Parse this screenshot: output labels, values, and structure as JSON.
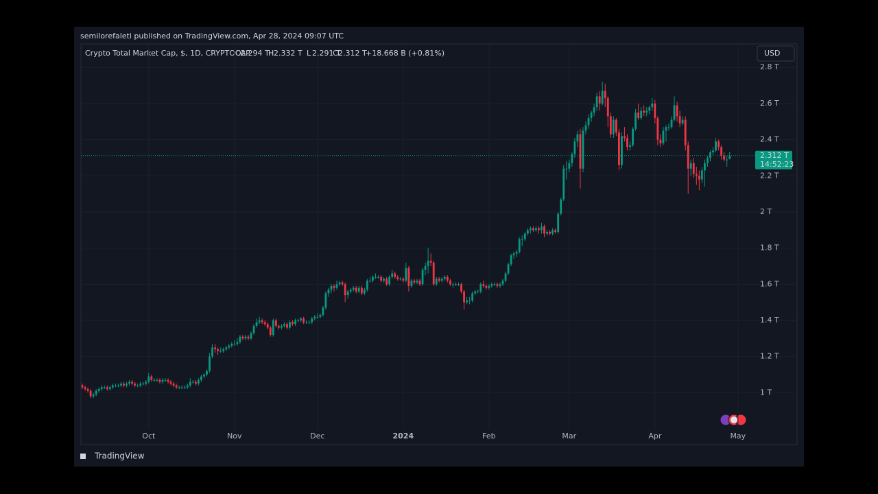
{
  "header": {
    "publisher_line": "semilorefaleti published on TradingView.com, Apr 28, 2024 09:07 UTC",
    "currency": "USD",
    "footer_logo": "TradingView"
  },
  "chart_data": {
    "type": "candlestick",
    "title": "Crypto Total Market Cap, $, 1D, CRYPTOCAP",
    "legend": [
      {
        "key": "O",
        "text": "2.294 T"
      },
      {
        "key": "H",
        "text": "2.332 T"
      },
      {
        "key": "L",
        "text": "2.291 T"
      },
      {
        "key": "C",
        "text": "2.312 T"
      }
    ],
    "change": "+18.668 B (+0.81%)",
    "last_price_label": "2.312 T",
    "countdown": "14:52:23",
    "up_color": "#089981",
    "down_color": "#f23645",
    "grid": true,
    "ylim": [
      0.8,
      2.93
    ],
    "yticks": [
      {
        "value": 1,
        "label": "1 T"
      },
      {
        "value": 1.2,
        "label": "1.2 T"
      },
      {
        "value": 1.4,
        "label": "1.4 T"
      },
      {
        "value": 1.6,
        "label": "1.6 T"
      },
      {
        "value": 1.8,
        "label": "1.8 T"
      },
      {
        "value": 2,
        "label": "2 T"
      },
      {
        "value": 2.2,
        "label": "2.2 T"
      },
      {
        "value": 2.4,
        "label": "2.4 T"
      },
      {
        "value": 2.6,
        "label": "2.6 T"
      },
      {
        "value": 2.8,
        "label": "2.8 T"
      }
    ],
    "xlim": [
      -0.5,
      242.5
    ],
    "xticks": [
      {
        "value": 24,
        "label": "Oct"
      },
      {
        "value": 55,
        "label": "Nov"
      },
      {
        "value": 85,
        "label": "Dec"
      },
      {
        "value": 116,
        "label": "2024"
      },
      {
        "value": 147,
        "label": "Feb"
      },
      {
        "value": 176,
        "label": "Mar"
      },
      {
        "value": 207,
        "label": "Apr"
      },
      {
        "value": 237,
        "label": "May"
      }
    ],
    "candles": [
      [
        1.04,
        1.05,
        1.02,
        1.03
      ],
      [
        1.03,
        1.04,
        1.01,
        1.02
      ],
      [
        1.02,
        1.03,
        1.0,
        1.01
      ],
      [
        1.01,
        1.02,
        0.97,
        0.98
      ],
      [
        0.98,
        1.0,
        0.97,
        0.99
      ],
      [
        0.99,
        1.02,
        0.98,
        1.01
      ],
      [
        1.01,
        1.03,
        1.0,
        1.02
      ],
      [
        1.02,
        1.04,
        1.01,
        1.03
      ],
      [
        1.03,
        1.04,
        1.02,
        1.03
      ],
      [
        1.03,
        1.04,
        1.01,
        1.02
      ],
      [
        1.02,
        1.04,
        1.01,
        1.03
      ],
      [
        1.03,
        1.05,
        1.02,
        1.04
      ],
      [
        1.04,
        1.05,
        1.03,
        1.04
      ],
      [
        1.04,
        1.05,
        1.03,
        1.04
      ],
      [
        1.04,
        1.06,
        1.03,
        1.05
      ],
      [
        1.05,
        1.06,
        1.03,
        1.04
      ],
      [
        1.04,
        1.06,
        1.03,
        1.05
      ],
      [
        1.05,
        1.07,
        1.04,
        1.06
      ],
      [
        1.06,
        1.07,
        1.04,
        1.05
      ],
      [
        1.05,
        1.06,
        1.03,
        1.04
      ],
      [
        1.04,
        1.05,
        1.03,
        1.04
      ],
      [
        1.04,
        1.06,
        1.03,
        1.05
      ],
      [
        1.05,
        1.06,
        1.04,
        1.05
      ],
      [
        1.05,
        1.07,
        1.04,
        1.06
      ],
      [
        1.06,
        1.11,
        1.05,
        1.09
      ],
      [
        1.09,
        1.1,
        1.06,
        1.07
      ],
      [
        1.07,
        1.08,
        1.06,
        1.07
      ],
      [
        1.07,
        1.08,
        1.06,
        1.07
      ],
      [
        1.07,
        1.08,
        1.05,
        1.06
      ],
      [
        1.06,
        1.08,
        1.05,
        1.07
      ],
      [
        1.07,
        1.08,
        1.06,
        1.07
      ],
      [
        1.07,
        1.08,
        1.05,
        1.06
      ],
      [
        1.06,
        1.07,
        1.04,
        1.05
      ],
      [
        1.05,
        1.06,
        1.03,
        1.04
      ],
      [
        1.04,
        1.05,
        1.02,
        1.03
      ],
      [
        1.03,
        1.04,
        1.02,
        1.03
      ],
      [
        1.03,
        1.04,
        1.02,
        1.03
      ],
      [
        1.03,
        1.04,
        1.02,
        1.03
      ],
      [
        1.03,
        1.05,
        1.02,
        1.04
      ],
      [
        1.04,
        1.08,
        1.03,
        1.06
      ],
      [
        1.06,
        1.07,
        1.05,
        1.06
      ],
      [
        1.06,
        1.07,
        1.04,
        1.05
      ],
      [
        1.05,
        1.08,
        1.04,
        1.07
      ],
      [
        1.07,
        1.1,
        1.06,
        1.09
      ],
      [
        1.09,
        1.11,
        1.08,
        1.1
      ],
      [
        1.1,
        1.13,
        1.09,
        1.12
      ],
      [
        1.12,
        1.22,
        1.11,
        1.2
      ],
      [
        1.2,
        1.27,
        1.19,
        1.25
      ],
      [
        1.25,
        1.27,
        1.22,
        1.24
      ],
      [
        1.24,
        1.25,
        1.21,
        1.23
      ],
      [
        1.23,
        1.25,
        1.22,
        1.23
      ],
      [
        1.23,
        1.25,
        1.22,
        1.24
      ],
      [
        1.24,
        1.26,
        1.23,
        1.25
      ],
      [
        1.25,
        1.27,
        1.24,
        1.26
      ],
      [
        1.26,
        1.28,
        1.25,
        1.27
      ],
      [
        1.27,
        1.29,
        1.26,
        1.27
      ],
      [
        1.27,
        1.3,
        1.26,
        1.28
      ],
      [
        1.28,
        1.32,
        1.27,
        1.31
      ],
      [
        1.31,
        1.32,
        1.29,
        1.3
      ],
      [
        1.3,
        1.32,
        1.29,
        1.31
      ],
      [
        1.31,
        1.32,
        1.29,
        1.3
      ],
      [
        1.3,
        1.34,
        1.29,
        1.33
      ],
      [
        1.33,
        1.38,
        1.32,
        1.37
      ],
      [
        1.37,
        1.41,
        1.36,
        1.39
      ],
      [
        1.39,
        1.42,
        1.38,
        1.4
      ],
      [
        1.4,
        1.41,
        1.38,
        1.39
      ],
      [
        1.39,
        1.4,
        1.37,
        1.38
      ],
      [
        1.38,
        1.39,
        1.35,
        1.36
      ],
      [
        1.36,
        1.37,
        1.31,
        1.32
      ],
      [
        1.32,
        1.41,
        1.31,
        1.4
      ],
      [
        1.4,
        1.41,
        1.36,
        1.37
      ],
      [
        1.37,
        1.38,
        1.35,
        1.36
      ],
      [
        1.36,
        1.38,
        1.35,
        1.37
      ],
      [
        1.37,
        1.39,
        1.36,
        1.38
      ],
      [
        1.38,
        1.39,
        1.35,
        1.36
      ],
      [
        1.36,
        1.4,
        1.35,
        1.39
      ],
      [
        1.39,
        1.4,
        1.37,
        1.38
      ],
      [
        1.38,
        1.41,
        1.37,
        1.4
      ],
      [
        1.4,
        1.41,
        1.39,
        1.4
      ],
      [
        1.4,
        1.42,
        1.39,
        1.41
      ],
      [
        1.41,
        1.42,
        1.38,
        1.39
      ],
      [
        1.39,
        1.4,
        1.38,
        1.39
      ],
      [
        1.39,
        1.4,
        1.38,
        1.39
      ],
      [
        1.39,
        1.42,
        1.38,
        1.41
      ],
      [
        1.41,
        1.43,
        1.4,
        1.42
      ],
      [
        1.42,
        1.44,
        1.41,
        1.42
      ],
      [
        1.42,
        1.44,
        1.41,
        1.43
      ],
      [
        1.43,
        1.48,
        1.42,
        1.47
      ],
      [
        1.47,
        1.56,
        1.46,
        1.55
      ],
      [
        1.55,
        1.58,
        1.53,
        1.57
      ],
      [
        1.57,
        1.6,
        1.55,
        1.59
      ],
      [
        1.59,
        1.6,
        1.56,
        1.58
      ],
      [
        1.58,
        1.62,
        1.57,
        1.6
      ],
      [
        1.6,
        1.62,
        1.59,
        1.61
      ],
      [
        1.61,
        1.62,
        1.59,
        1.6
      ],
      [
        1.6,
        1.61,
        1.5,
        1.54
      ],
      [
        1.54,
        1.57,
        1.52,
        1.56
      ],
      [
        1.56,
        1.58,
        1.55,
        1.57
      ],
      [
        1.57,
        1.59,
        1.56,
        1.58
      ],
      [
        1.58,
        1.59,
        1.55,
        1.56
      ],
      [
        1.56,
        1.59,
        1.55,
        1.58
      ],
      [
        1.58,
        1.59,
        1.54,
        1.55
      ],
      [
        1.55,
        1.58,
        1.54,
        1.57
      ],
      [
        1.57,
        1.63,
        1.56,
        1.62
      ],
      [
        1.62,
        1.64,
        1.61,
        1.62
      ],
      [
        1.62,
        1.65,
        1.61,
        1.64
      ],
      [
        1.64,
        1.66,
        1.63,
        1.64
      ],
      [
        1.64,
        1.65,
        1.63,
        1.64
      ],
      [
        1.64,
        1.65,
        1.61,
        1.62
      ],
      [
        1.62,
        1.64,
        1.61,
        1.63
      ],
      [
        1.63,
        1.64,
        1.59,
        1.6
      ],
      [
        1.6,
        1.65,
        1.59,
        1.64
      ],
      [
        1.64,
        1.68,
        1.63,
        1.66
      ],
      [
        1.66,
        1.67,
        1.63,
        1.64
      ],
      [
        1.64,
        1.65,
        1.62,
        1.63
      ],
      [
        1.63,
        1.64,
        1.62,
        1.63
      ],
      [
        1.63,
        1.64,
        1.61,
        1.62
      ],
      [
        1.62,
        1.72,
        1.61,
        1.69
      ],
      [
        1.69,
        1.7,
        1.56,
        1.59
      ],
      [
        1.59,
        1.63,
        1.58,
        1.62
      ],
      [
        1.62,
        1.63,
        1.6,
        1.61
      ],
      [
        1.61,
        1.63,
        1.6,
        1.62
      ],
      [
        1.62,
        1.63,
        1.59,
        1.6
      ],
      [
        1.6,
        1.69,
        1.59,
        1.68
      ],
      [
        1.68,
        1.72,
        1.65,
        1.7
      ],
      [
        1.7,
        1.8,
        1.66,
        1.73
      ],
      [
        1.73,
        1.77,
        1.7,
        1.72
      ],
      [
        1.72,
        1.73,
        1.59,
        1.6
      ],
      [
        1.6,
        1.64,
        1.59,
        1.63
      ],
      [
        1.63,
        1.64,
        1.61,
        1.62
      ],
      [
        1.62,
        1.64,
        1.61,
        1.63
      ],
      [
        1.63,
        1.65,
        1.62,
        1.64
      ],
      [
        1.64,
        1.65,
        1.61,
        1.62
      ],
      [
        1.62,
        1.63,
        1.59,
        1.6
      ],
      [
        1.6,
        1.61,
        1.58,
        1.6
      ],
      [
        1.6,
        1.61,
        1.59,
        1.6
      ],
      [
        1.6,
        1.61,
        1.59,
        1.6
      ],
      [
        1.6,
        1.61,
        1.55,
        1.56
      ],
      [
        1.56,
        1.57,
        1.46,
        1.5
      ],
      [
        1.5,
        1.53,
        1.49,
        1.51
      ],
      [
        1.51,
        1.53,
        1.49,
        1.51
      ],
      [
        1.51,
        1.56,
        1.5,
        1.55
      ],
      [
        1.55,
        1.57,
        1.54,
        1.56
      ],
      [
        1.56,
        1.57,
        1.55,
        1.56
      ],
      [
        1.56,
        1.61,
        1.55,
        1.6
      ],
      [
        1.6,
        1.62,
        1.58,
        1.59
      ],
      [
        1.59,
        1.6,
        1.57,
        1.58
      ],
      [
        1.58,
        1.6,
        1.57,
        1.59
      ],
      [
        1.59,
        1.61,
        1.58,
        1.6
      ],
      [
        1.6,
        1.61,
        1.59,
        1.6
      ],
      [
        1.6,
        1.61,
        1.58,
        1.59
      ],
      [
        1.59,
        1.61,
        1.58,
        1.6
      ],
      [
        1.6,
        1.63,
        1.59,
        1.62
      ],
      [
        1.62,
        1.67,
        1.61,
        1.66
      ],
      [
        1.66,
        1.72,
        1.65,
        1.71
      ],
      [
        1.71,
        1.77,
        1.7,
        1.76
      ],
      [
        1.76,
        1.78,
        1.74,
        1.77
      ],
      [
        1.77,
        1.79,
        1.75,
        1.78
      ],
      [
        1.78,
        1.86,
        1.77,
        1.85
      ],
      [
        1.85,
        1.87,
        1.81,
        1.85
      ],
      [
        1.85,
        1.89,
        1.84,
        1.88
      ],
      [
        1.88,
        1.91,
        1.87,
        1.9
      ],
      [
        1.9,
        1.92,
        1.88,
        1.91
      ],
      [
        1.91,
        1.92,
        1.89,
        1.9
      ],
      [
        1.9,
        1.92,
        1.89,
        1.91
      ],
      [
        1.91,
        1.92,
        1.88,
        1.9
      ],
      [
        1.9,
        1.94,
        1.88,
        1.92
      ],
      [
        1.92,
        1.93,
        1.86,
        1.88
      ],
      [
        1.88,
        1.9,
        1.87,
        1.89
      ],
      [
        1.89,
        1.9,
        1.87,
        1.88
      ],
      [
        1.88,
        1.91,
        1.87,
        1.9
      ],
      [
        1.9,
        1.91,
        1.88,
        1.89
      ],
      [
        1.89,
        2.0,
        1.88,
        1.99
      ],
      [
        1.99,
        2.08,
        1.98,
        2.07
      ],
      [
        2.07,
        2.26,
        2.06,
        2.24
      ],
      [
        2.24,
        2.28,
        2.18,
        2.24
      ],
      [
        2.24,
        2.29,
        2.22,
        2.27
      ],
      [
        2.27,
        2.33,
        2.25,
        2.32
      ],
      [
        2.32,
        2.41,
        2.3,
        2.39
      ],
      [
        2.39,
        2.45,
        2.36,
        2.43
      ],
      [
        2.43,
        2.46,
        2.13,
        2.24
      ],
      [
        2.24,
        2.47,
        2.22,
        2.45
      ],
      [
        2.45,
        2.5,
        2.43,
        2.48
      ],
      [
        2.48,
        2.54,
        2.46,
        2.52
      ],
      [
        2.52,
        2.56,
        2.5,
        2.55
      ],
      [
        2.55,
        2.6,
        2.53,
        2.58
      ],
      [
        2.58,
        2.66,
        2.56,
        2.64
      ],
      [
        2.64,
        2.67,
        2.56,
        2.6
      ],
      [
        2.6,
        2.72,
        2.59,
        2.67
      ],
      [
        2.67,
        2.71,
        2.58,
        2.63
      ],
      [
        2.63,
        2.64,
        2.47,
        2.53
      ],
      [
        2.53,
        2.55,
        2.41,
        2.43
      ],
      [
        2.43,
        2.53,
        2.41,
        2.51
      ],
      [
        2.51,
        2.52,
        2.42,
        2.44
      ],
      [
        2.44,
        2.46,
        2.23,
        2.26
      ],
      [
        2.26,
        2.44,
        2.24,
        2.42
      ],
      [
        2.42,
        2.47,
        2.39,
        2.41
      ],
      [
        2.41,
        2.43,
        2.34,
        2.36
      ],
      [
        2.36,
        2.39,
        2.34,
        2.37
      ],
      [
        2.37,
        2.47,
        2.36,
        2.46
      ],
      [
        2.46,
        2.57,
        2.45,
        2.55
      ],
      [
        2.55,
        2.6,
        2.51,
        2.52
      ],
      [
        2.52,
        2.58,
        2.51,
        2.56
      ],
      [
        2.56,
        2.59,
        2.53,
        2.55
      ],
      [
        2.55,
        2.58,
        2.53,
        2.56
      ],
      [
        2.56,
        2.59,
        2.54,
        2.58
      ],
      [
        2.58,
        2.63,
        2.56,
        2.6
      ],
      [
        2.6,
        2.62,
        2.49,
        2.52
      ],
      [
        2.52,
        2.53,
        2.37,
        2.4
      ],
      [
        2.4,
        2.43,
        2.36,
        2.38
      ],
      [
        2.38,
        2.47,
        2.37,
        2.45
      ],
      [
        2.45,
        2.48,
        2.39,
        2.47
      ],
      [
        2.47,
        2.49,
        2.45,
        2.47
      ],
      [
        2.47,
        2.53,
        2.46,
        2.51
      ],
      [
        2.51,
        2.64,
        2.5,
        2.59
      ],
      [
        2.59,
        2.61,
        2.5,
        2.53
      ],
      [
        2.53,
        2.56,
        2.47,
        2.49
      ],
      [
        2.49,
        2.53,
        2.48,
        2.51
      ],
      [
        2.51,
        2.53,
        2.34,
        2.37
      ],
      [
        2.37,
        2.39,
        2.1,
        2.24
      ],
      [
        2.24,
        2.29,
        2.2,
        2.27
      ],
      [
        2.27,
        2.3,
        2.19,
        2.21
      ],
      [
        2.21,
        2.25,
        2.15,
        2.2
      ],
      [
        2.2,
        2.23,
        2.12,
        2.18
      ],
      [
        2.18,
        2.25,
        2.16,
        2.23
      ],
      [
        2.23,
        2.29,
        2.14,
        2.27
      ],
      [
        2.27,
        2.31,
        2.25,
        2.3
      ],
      [
        2.3,
        2.34,
        2.28,
        2.33
      ],
      [
        2.33,
        2.36,
        2.31,
        2.34
      ],
      [
        2.34,
        2.41,
        2.33,
        2.39
      ],
      [
        2.39,
        2.4,
        2.34,
        2.36
      ],
      [
        2.36,
        2.37,
        2.29,
        2.31
      ],
      [
        2.31,
        2.33,
        2.28,
        2.29
      ],
      [
        2.29,
        2.31,
        2.25,
        2.29
      ],
      [
        2.294,
        2.332,
        2.291,
        2.312
      ]
    ]
  }
}
